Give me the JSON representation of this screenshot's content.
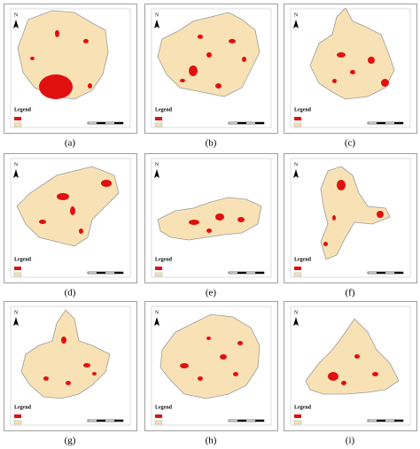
{
  "panels": [
    {
      "label": "(a)"
    },
    {
      "label": "(b)"
    },
    {
      "label": "(c)"
    },
    {
      "label": "(d)"
    },
    {
      "label": "(e)"
    },
    {
      "label": "(f)"
    },
    {
      "label": "(g)"
    },
    {
      "label": "(h)"
    },
    {
      "label": "(i)"
    }
  ],
  "north": "N",
  "legend_title": "Legend"
}
